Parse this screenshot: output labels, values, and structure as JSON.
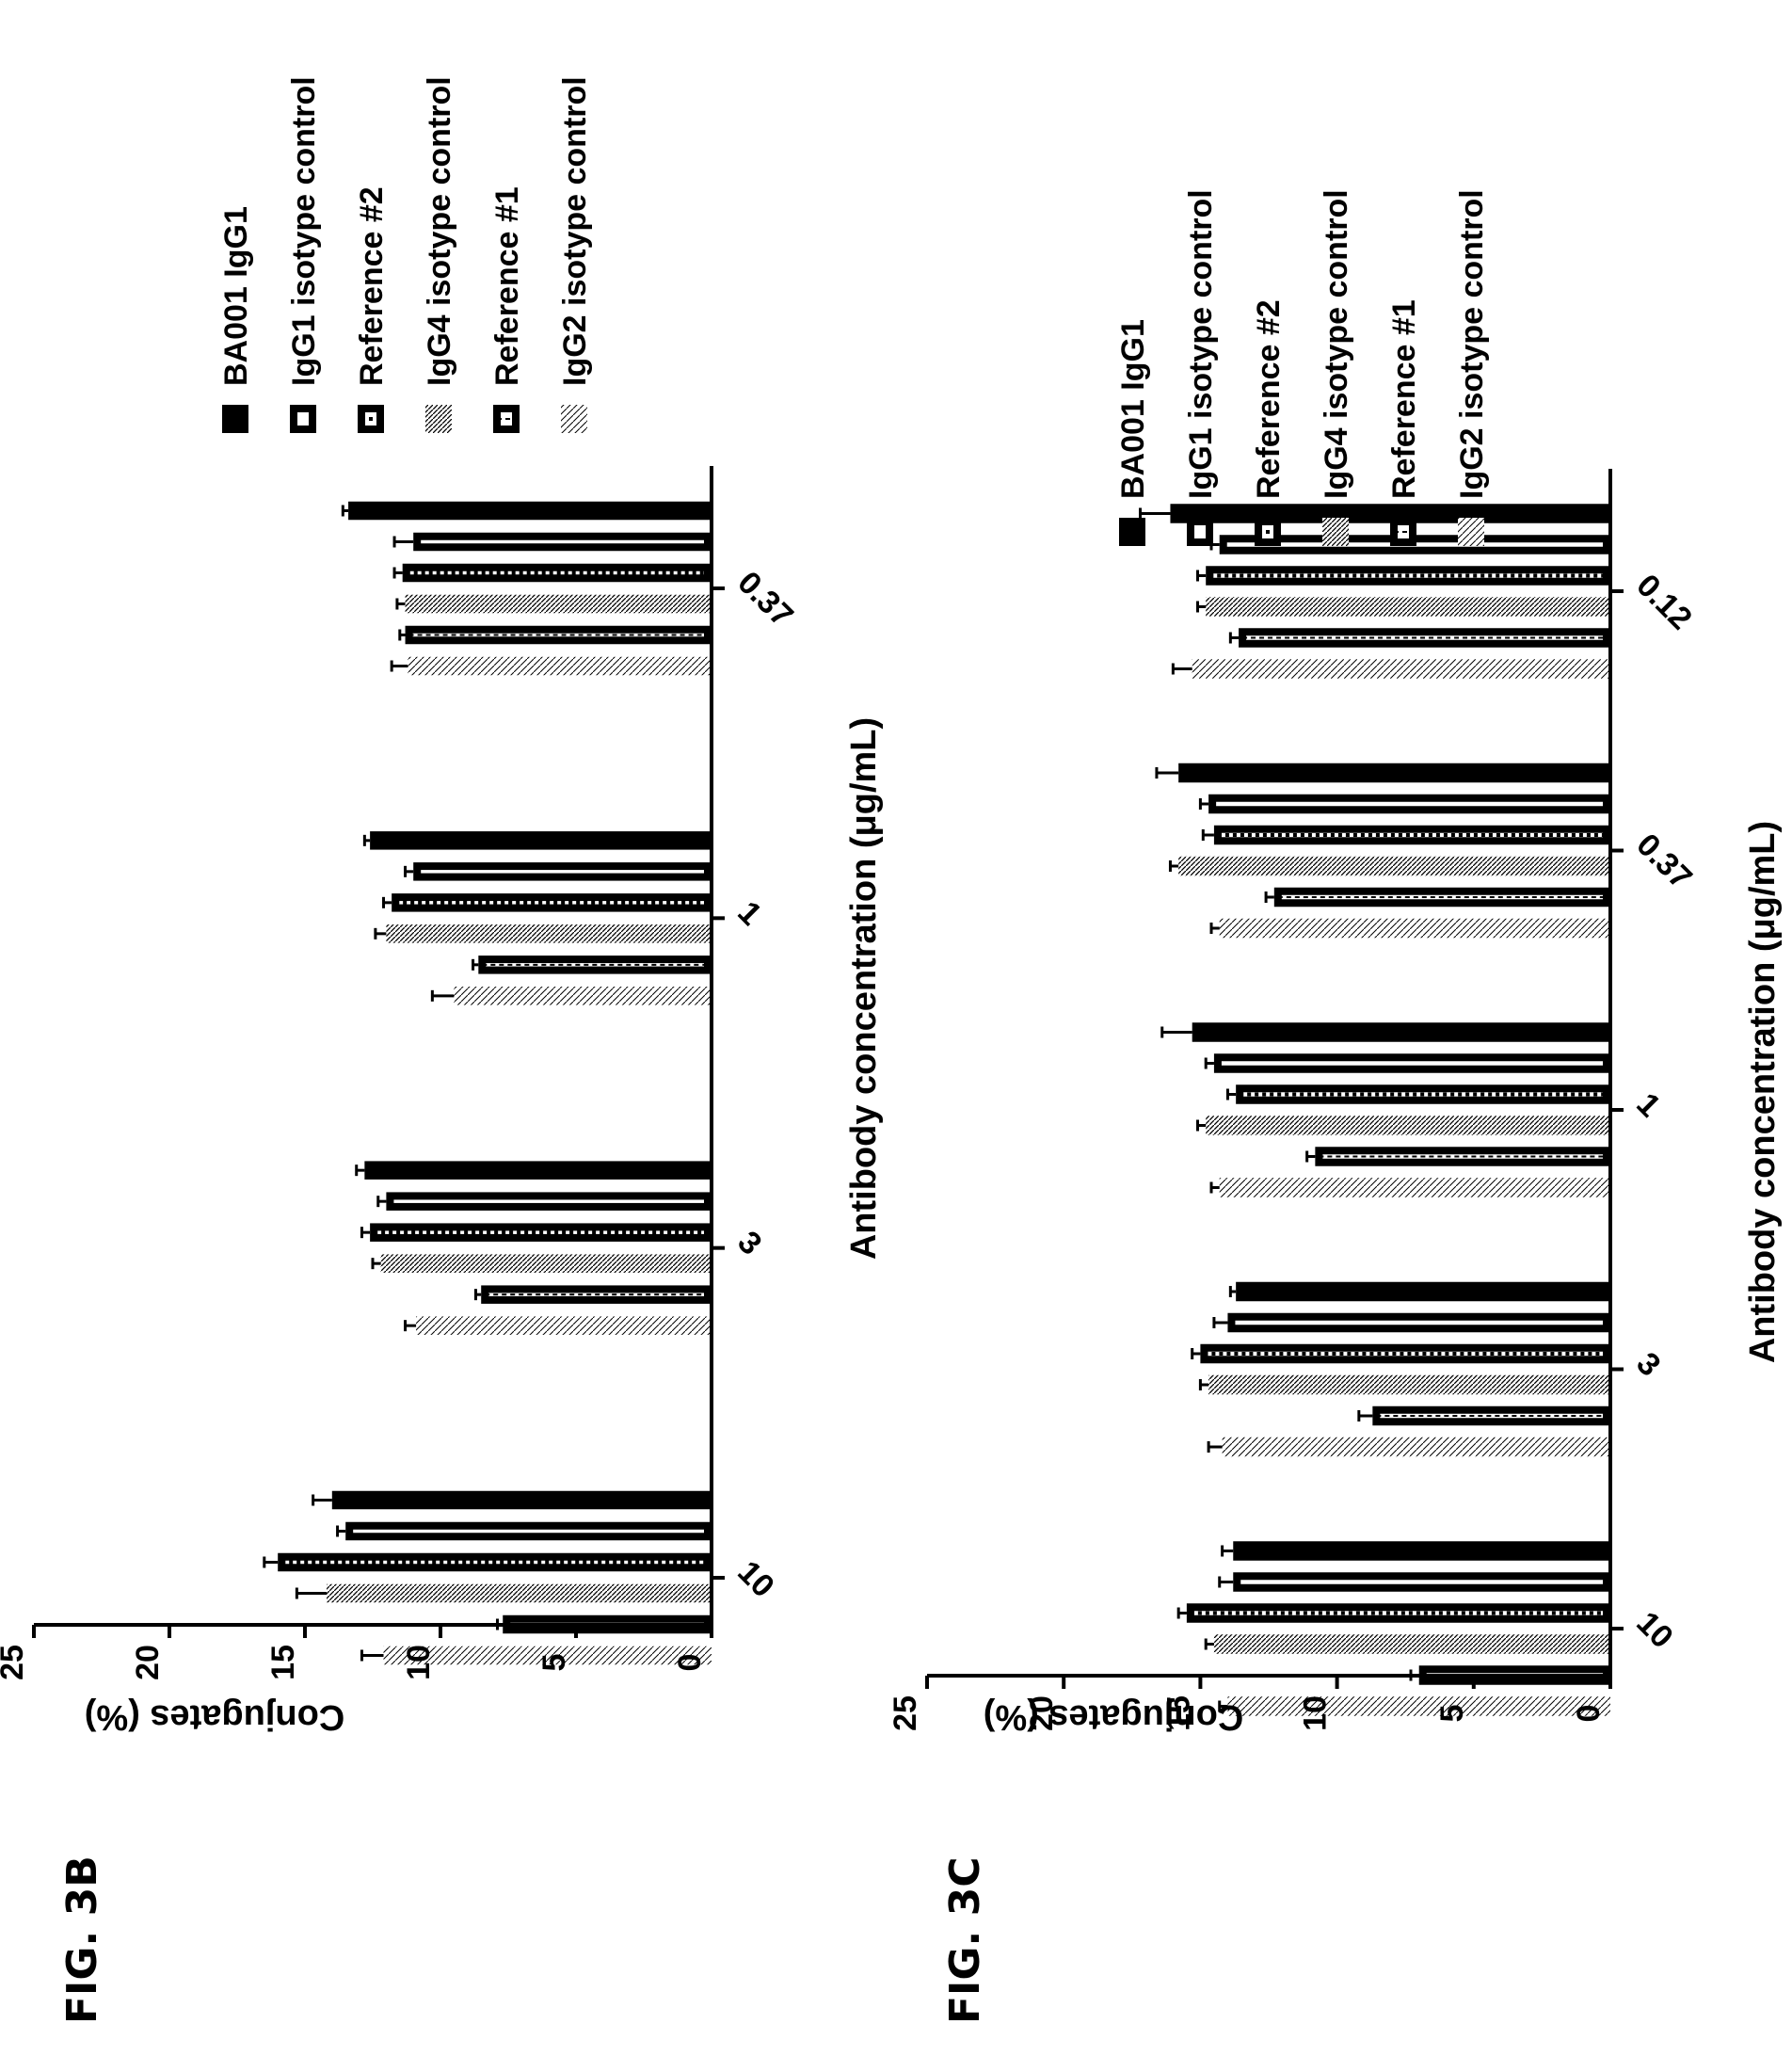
{
  "figures": [
    {
      "label": "FIG. 3B"
    },
    {
      "label": "FIG. 3C"
    }
  ],
  "chart_data": [
    {
      "type": "bar",
      "figure": "FIG. 3B",
      "xlabel": "Antibody concentration (μg/mL)",
      "ylabel": "Conjugates (%)",
      "ylim": [
        0,
        25
      ],
      "yticks": [
        "0",
        "5",
        "10",
        "15",
        "20",
        "25"
      ],
      "categories": [
        "10",
        "3",
        "1",
        "0.37"
      ],
      "legend_position": "right",
      "series": [
        {
          "name": "BA001 IgG1",
          "pattern": "solid",
          "values": [
            14.0,
            12.8,
            12.6,
            13.4
          ],
          "errors": [
            0.7,
            0.3,
            0.2,
            0.2
          ]
        },
        {
          "name": "IgG1 isotype control",
          "pattern": "hollow",
          "values": [
            13.5,
            12.0,
            11.0,
            11.0
          ],
          "errors": [
            0.3,
            0.3,
            0.3,
            0.7
          ]
        },
        {
          "name": "Reference #2",
          "pattern": "checker",
          "values": [
            16.0,
            12.6,
            11.8,
            11.4
          ],
          "errors": [
            0.5,
            0.3,
            0.3,
            0.3
          ]
        },
        {
          "name": "IgG4 isotype control",
          "pattern": "hatch",
          "values": [
            14.2,
            12.2,
            12.0,
            11.3
          ],
          "errors": [
            1.1,
            0.3,
            0.4,
            0.3
          ]
        },
        {
          "name": "Reference #1",
          "pattern": "hollow-dash",
          "values": [
            7.7,
            8.5,
            8.6,
            11.3
          ],
          "errors": [
            0.2,
            0.2,
            0.2,
            0.2
          ]
        },
        {
          "name": "IgG2 isotype control",
          "pattern": "hatch-light",
          "values": [
            12.1,
            10.9,
            9.5,
            11.2
          ],
          "errors": [
            0.8,
            0.4,
            0.8,
            0.6
          ]
        }
      ]
    },
    {
      "type": "bar",
      "figure": "FIG. 3C",
      "xlabel": "Antibody concentration (μg/mL)",
      "ylabel": "Conjugates (%)",
      "ylim": [
        0,
        25
      ],
      "yticks": [
        "0",
        "5",
        "10",
        "15",
        "20",
        "25"
      ],
      "categories": [
        "10",
        "3",
        "1",
        "0.37",
        "0.12"
      ],
      "legend_position": "right",
      "series": [
        {
          "name": "BA001 IgG1",
          "pattern": "solid",
          "values": [
            13.8,
            13.7,
            15.3,
            15.8,
            16.1
          ],
          "errors": [
            0.4,
            0.2,
            1.1,
            0.8,
            1.1
          ]
        },
        {
          "name": "IgG1 isotype control",
          "pattern": "hollow",
          "values": [
            13.8,
            14.0,
            14.5,
            14.7,
            14.3
          ],
          "errors": [
            0.5,
            0.5,
            0.3,
            0.3,
            0.3
          ]
        },
        {
          "name": "Reference #2",
          "pattern": "checker",
          "values": [
            15.5,
            15.0,
            13.7,
            14.5,
            14.8
          ],
          "errors": [
            0.3,
            0.3,
            0.3,
            0.4,
            0.3
          ]
        },
        {
          "name": "IgG4 isotype control",
          "pattern": "hatch",
          "values": [
            14.5,
            14.7,
            14.8,
            15.8,
            14.8
          ],
          "errors": [
            0.3,
            0.3,
            0.3,
            0.3,
            0.3
          ]
        },
        {
          "name": "Reference #1",
          "pattern": "hollow-dash",
          "values": [
            7.0,
            8.7,
            10.8,
            12.3,
            13.6
          ],
          "errors": [
            0.3,
            0.5,
            0.3,
            0.3,
            0.3
          ]
        },
        {
          "name": "IgG2 isotype control",
          "pattern": "hatch-light",
          "values": [
            14.0,
            14.2,
            14.3,
            14.3,
            15.3
          ],
          "errors": [
            0.3,
            0.5,
            0.3,
            0.3,
            0.7
          ]
        }
      ]
    }
  ]
}
